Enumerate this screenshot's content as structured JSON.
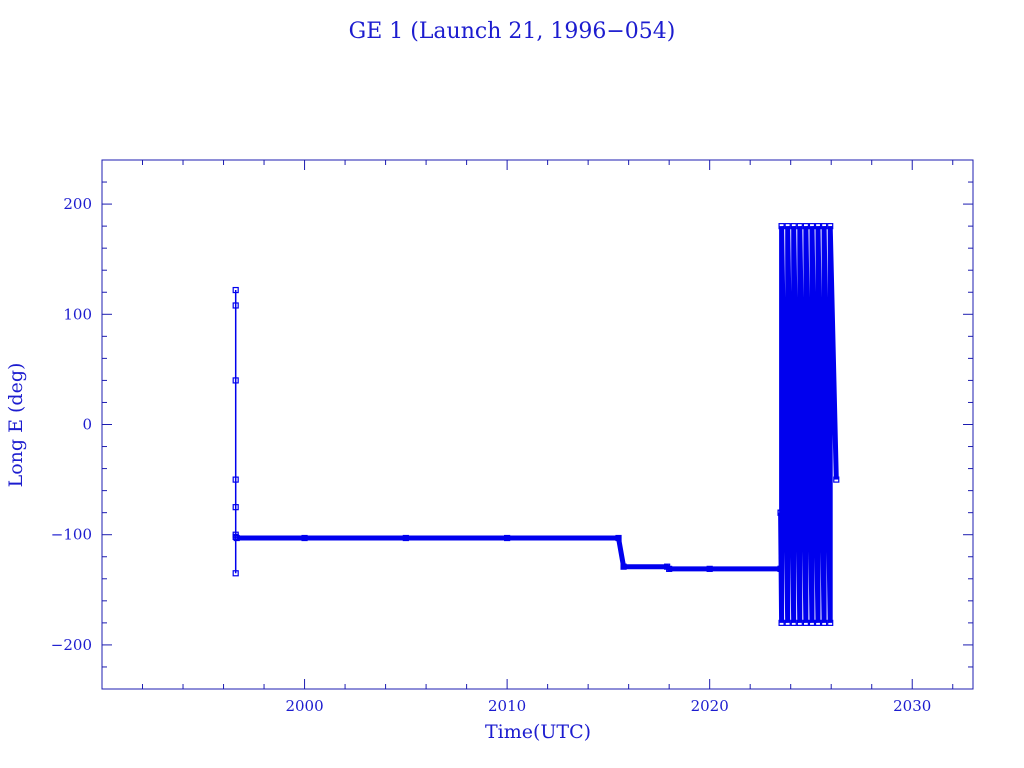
{
  "chart_data": {
    "type": "line",
    "title": "GE 1 (Launch 21, 1996−054)",
    "xlabel": "Time(UTC)",
    "ylabel": "Long E (deg)",
    "xlim": [
      1990.0,
      2033.0
    ],
    "ylim": [
      -240,
      240
    ],
    "x_ticks": [
      2000,
      2010,
      2020,
      2030
    ],
    "x_tick_labels": [
      "2000",
      "2010",
      "2020",
      "2030"
    ],
    "y_ticks": [
      -200,
      -100,
      0,
      100,
      200
    ],
    "y_tick_labels": [
      "−200",
      "−100",
      "0",
      "100",
      "200"
    ],
    "grid": false,
    "line_color": "#0000ee",
    "series": [
      {
        "segments": [
          {
            "style": "thin",
            "x": [
              1996.6,
              1996.6,
              1996.6,
              1996.6,
              1996.6,
              1996.6,
              1996.6,
              1996.6
            ],
            "y": [
              122,
              108,
              40,
              -50,
              -75,
              -100,
              -135,
              -102
            ]
          },
          {
            "style": "thick",
            "x": [
              1996.65,
              2000.0,
              2005.0,
              2010.0,
              2015.5,
              2015.75,
              2017.9,
              2018.0,
              2020.0,
              2023.5
            ],
            "y": [
              -103,
              -103,
              -103,
              -103,
              -103,
              -129,
              -129,
              -131,
              -131,
              -131
            ]
          },
          {
            "style": "thin",
            "x": [
              2023.5,
              2023.5
            ],
            "y": [
              -131,
              -80
            ]
          },
          {
            "style": "thick",
            "x": [
              2023.5,
              2023.55,
              2023.55,
              2023.85,
              2023.85,
              2024.15,
              2024.15,
              2024.45,
              2024.45,
              2024.75,
              2024.75,
              2025.05,
              2025.05,
              2025.35,
              2025.35,
              2025.65,
              2025.65,
              2025.95,
              2025.95,
              2026.25
            ],
            "y": [
              -80,
              -180,
              180,
              -180,
              180,
              -180,
              180,
              -180,
              180,
              -180,
              180,
              -180,
              180,
              -180,
              180,
              -180,
              180,
              -180,
              180,
              -50
            ]
          }
        ]
      }
    ]
  }
}
